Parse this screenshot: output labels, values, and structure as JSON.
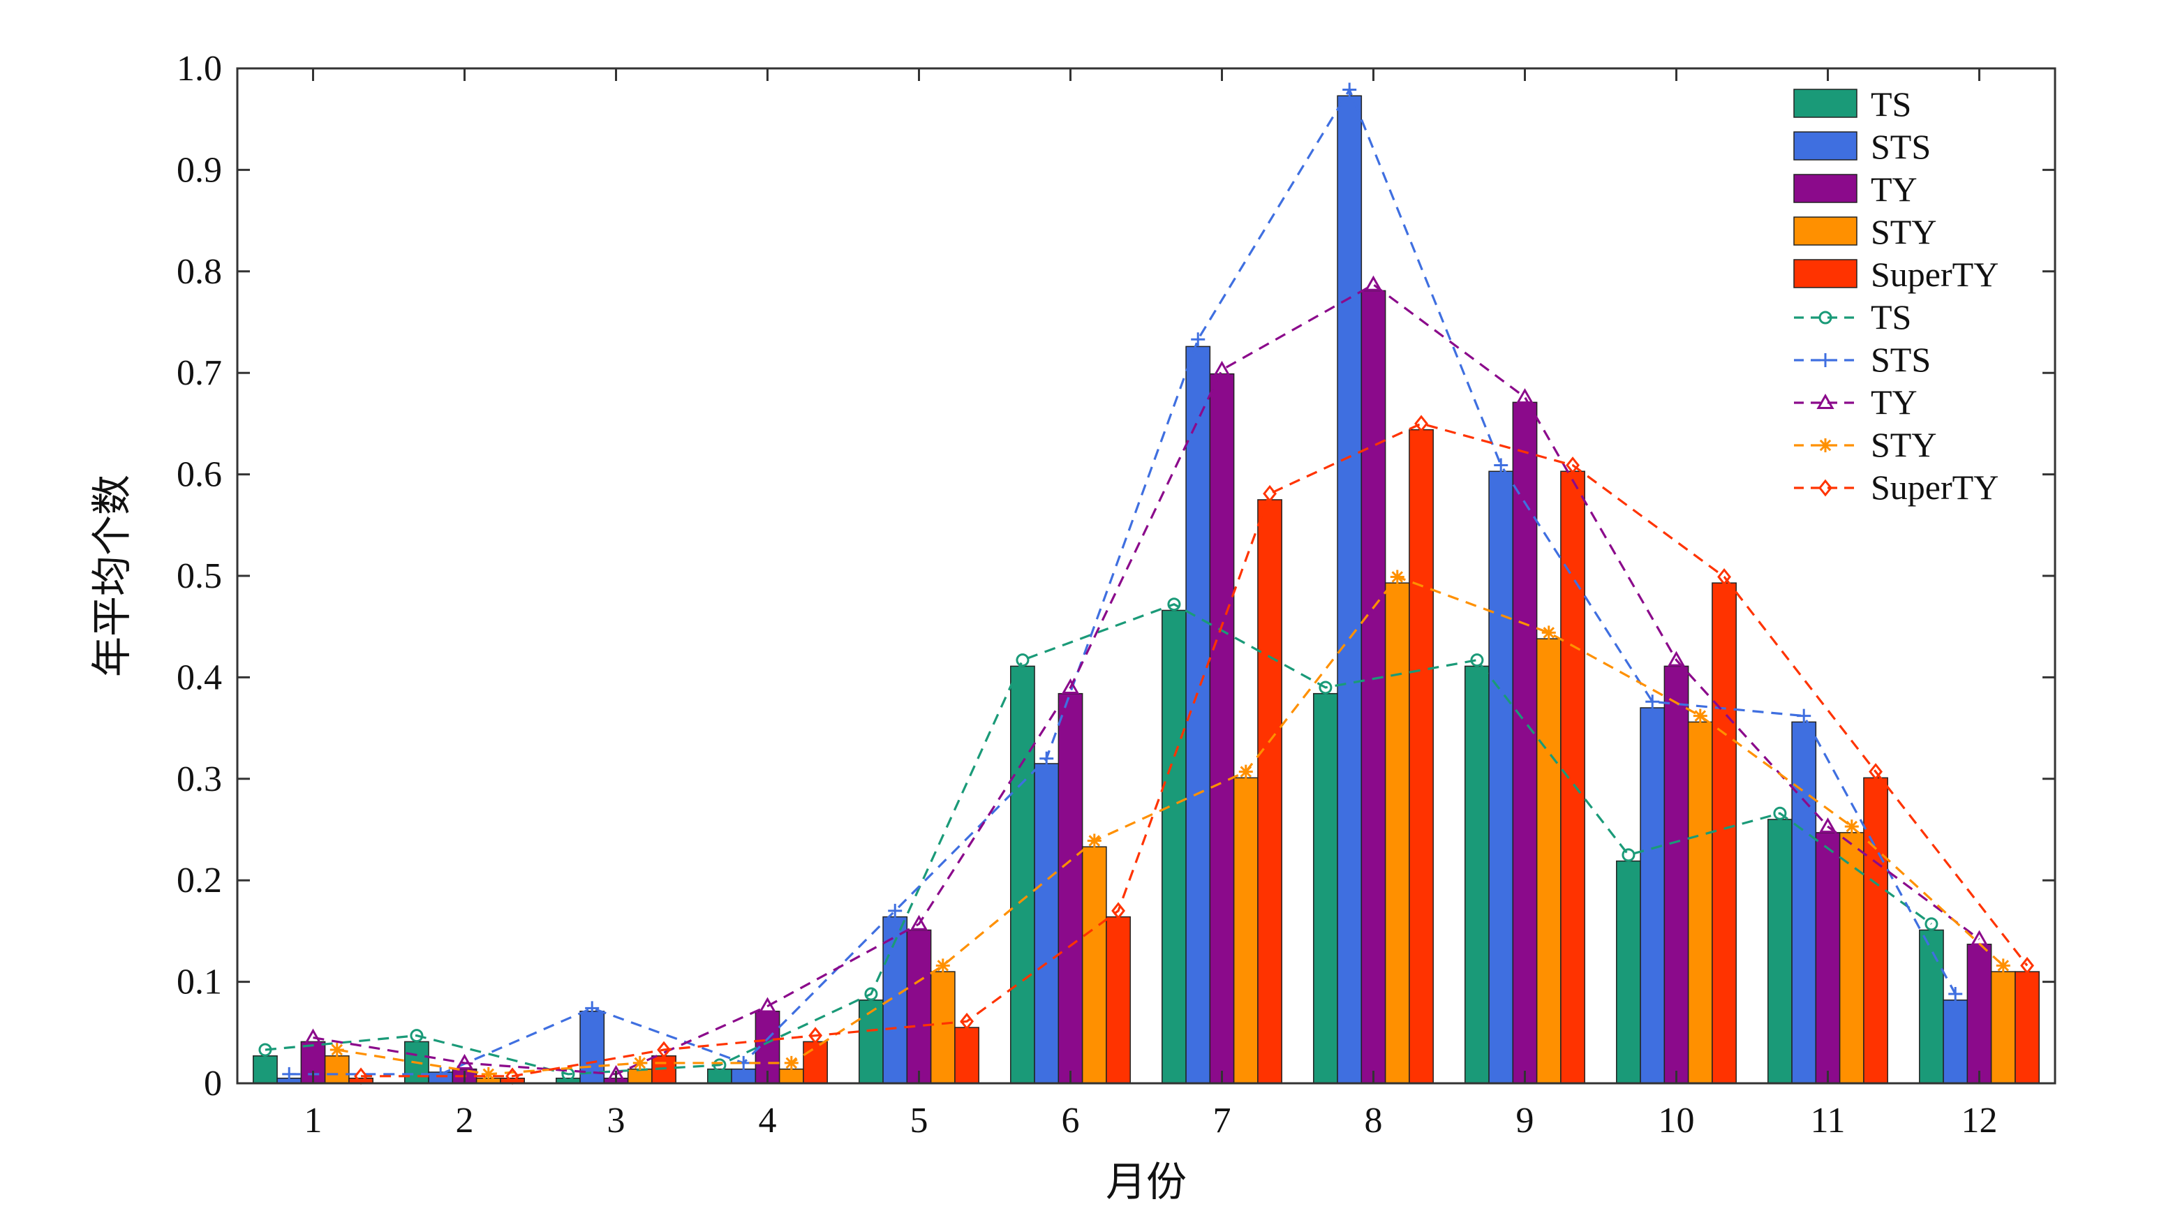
{
  "chart_data": {
    "type": "bar",
    "title": "",
    "xlabel": "月份",
    "ylabel": "年平均个数",
    "ylim": [
      0,
      1.0
    ],
    "yticks": [
      "0",
      "0.1",
      "0.2",
      "0.3",
      "0.4",
      "0.5",
      "0.6",
      "0.7",
      "0.8",
      "0.9",
      "1.0"
    ],
    "categories": [
      "1",
      "2",
      "3",
      "4",
      "5",
      "6",
      "7",
      "8",
      "9",
      "10",
      "11",
      "12"
    ],
    "grid": false,
    "legend_position": "top-right",
    "series": [
      {
        "name": "TS",
        "color": "#1a9a78",
        "values": [
          0.027,
          0.041,
          0.005,
          0.014,
          0.082,
          0.411,
          0.466,
          0.384,
          0.411,
          0.219,
          0.26,
          0.151
        ]
      },
      {
        "name": "STS",
        "color": "#3f6fe0",
        "values": [
          0.005,
          0.011,
          0.071,
          0.014,
          0.164,
          0.315,
          0.726,
          0.973,
          0.603,
          0.37,
          0.356,
          0.082
        ]
      },
      {
        "name": "TY",
        "color": "#8b0a8b",
        "values": [
          0.041,
          0.014,
          0.005,
          0.071,
          0.151,
          0.384,
          0.699,
          0.781,
          0.671,
          0.411,
          0.247,
          0.137
        ]
      },
      {
        "name": "STY",
        "color": "#ff9000",
        "values": [
          0.027,
          0.005,
          0.014,
          0.014,
          0.11,
          0.233,
          0.301,
          0.493,
          0.438,
          0.356,
          0.247,
          0.11
        ]
      },
      {
        "name": "SuperTY",
        "color": "#ff3300",
        "values": [
          0.005,
          0.005,
          0.027,
          0.041,
          0.055,
          0.164,
          0.575,
          0.644,
          0.603,
          0.493,
          0.301,
          0.11
        ]
      }
    ],
    "fit_lines": [
      {
        "name": "TS",
        "color": "#1a9a78",
        "marker": "circle",
        "values": [
          0.033,
          0.047,
          0.009,
          0.018,
          0.088,
          0.417,
          0.472,
          0.39,
          0.417,
          0.225,
          0.266,
          0.157
        ]
      },
      {
        "name": "STS",
        "color": "#3f6fe0",
        "marker": "plus",
        "values": [
          0.009,
          0.009,
          0.074,
          0.02,
          0.17,
          0.32,
          0.733,
          0.979,
          0.609,
          0.376,
          0.362,
          0.088
        ]
      },
      {
        "name": "TY",
        "color": "#8b0a8b",
        "marker": "triangle",
        "values": [
          0.045,
          0.02,
          0.009,
          0.076,
          0.157,
          0.39,
          0.703,
          0.787,
          0.676,
          0.417,
          0.253,
          0.142
        ]
      },
      {
        "name": "STY",
        "color": "#ff9000",
        "marker": "star",
        "values": [
          0.033,
          0.009,
          0.02,
          0.02,
          0.116,
          0.239,
          0.307,
          0.499,
          0.444,
          0.362,
          0.253,
          0.116
        ]
      },
      {
        "name": "SuperTY",
        "color": "#ff3300",
        "marker": "diamond",
        "values": [
          0.007,
          0.007,
          0.033,
          0.047,
          0.061,
          0.17,
          0.581,
          0.65,
          0.609,
          0.499,
          0.307,
          0.116
        ]
      }
    ]
  }
}
